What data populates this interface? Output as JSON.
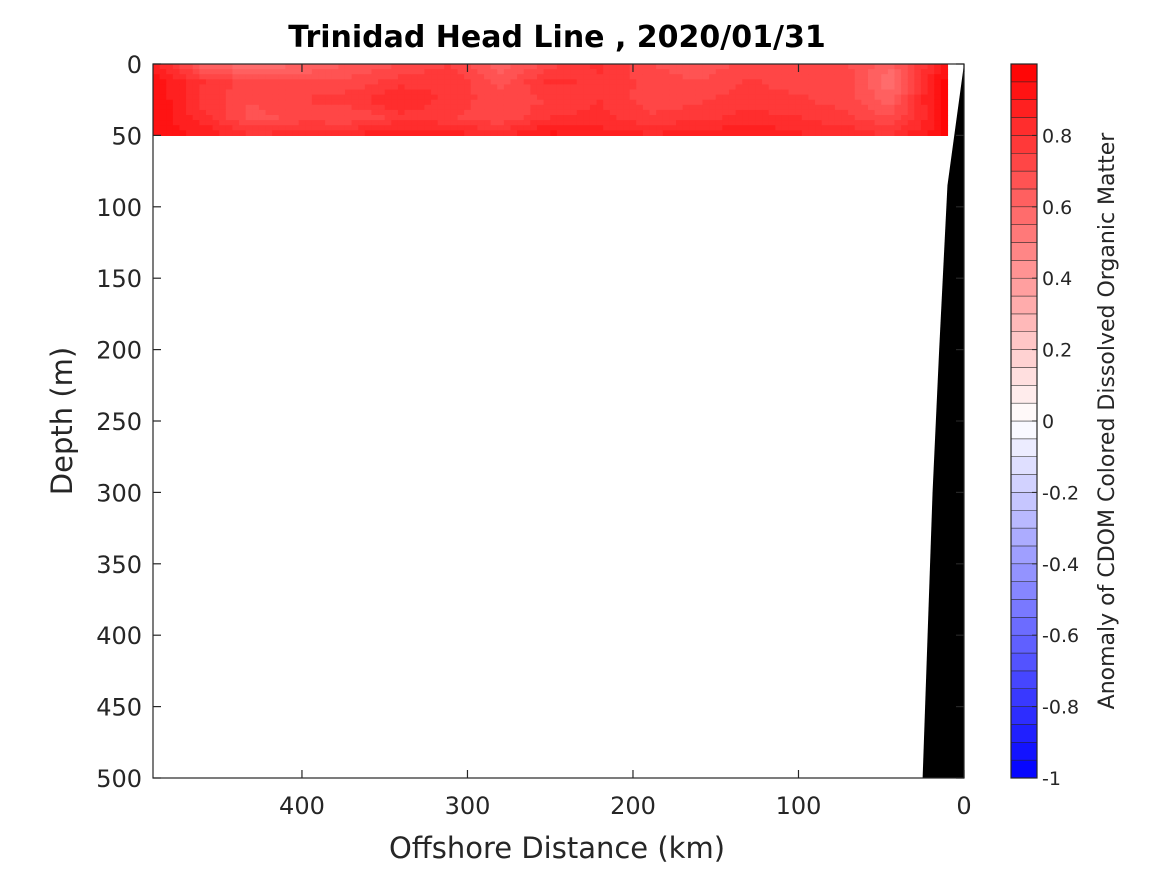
{
  "chart_data": {
    "type": "heatmap",
    "title": "Trinidad Head Line , 2020/01/31",
    "xlabel": "Offshore Distance (km)",
    "ylabel": "Depth (m)",
    "xlim": [
      490,
      0
    ],
    "ylim": [
      0,
      500
    ],
    "x_ticks": [
      {
        "value": 400,
        "label": "400"
      },
      {
        "value": 300,
        "label": "300"
      },
      {
        "value": 200,
        "label": "200"
      },
      {
        "value": 100,
        "label": "100"
      },
      {
        "value": 0,
        "label": "0"
      }
    ],
    "y_ticks": [
      {
        "value": 0,
        "label": "0"
      },
      {
        "value": 50,
        "label": "50"
      },
      {
        "value": 100,
        "label": "100"
      },
      {
        "value": 150,
        "label": "150"
      },
      {
        "value": 200,
        "label": "200"
      },
      {
        "value": 250,
        "label": "250"
      },
      {
        "value": 300,
        "label": "300"
      },
      {
        "value": 350,
        "label": "350"
      },
      {
        "value": 400,
        "label": "400"
      },
      {
        "value": 450,
        "label": "450"
      },
      {
        "value": 500,
        "label": "500"
      }
    ],
    "data_coverage": {
      "x_min": 10,
      "x_max": 490,
      "depth_min": 0,
      "depth_max": 50
    },
    "field_columns": [
      {
        "x": 490,
        "values": [
          0.88,
          0.95,
          0.96,
          0.95,
          0.92
        ]
      },
      {
        "x": 460,
        "values": [
          0.62,
          0.8,
          0.78,
          0.82,
          0.9
        ]
      },
      {
        "x": 430,
        "values": [
          0.55,
          0.72,
          0.7,
          0.68,
          0.8
        ]
      },
      {
        "x": 400,
        "values": [
          0.6,
          0.7,
          0.75,
          0.72,
          0.84
        ]
      },
      {
        "x": 370,
        "values": [
          0.65,
          0.72,
          0.78,
          0.7,
          0.86
        ]
      },
      {
        "x": 340,
        "values": [
          0.7,
          0.78,
          0.85,
          0.78,
          0.9
        ]
      },
      {
        "x": 310,
        "values": [
          0.75,
          0.8,
          0.78,
          0.76,
          0.88
        ]
      },
      {
        "x": 280,
        "values": [
          0.62,
          0.68,
          0.72,
          0.7,
          0.84
        ]
      },
      {
        "x": 250,
        "values": [
          0.72,
          0.82,
          0.75,
          0.8,
          0.92
        ]
      },
      {
        "x": 220,
        "values": [
          0.82,
          0.78,
          0.8,
          0.82,
          0.88
        ]
      },
      {
        "x": 190,
        "values": [
          0.7,
          0.74,
          0.72,
          0.76,
          0.86
        ]
      },
      {
        "x": 160,
        "values": [
          0.66,
          0.7,
          0.74,
          0.78,
          0.88
        ]
      },
      {
        "x": 130,
        "values": [
          0.72,
          0.76,
          0.78,
          0.82,
          0.9
        ]
      },
      {
        "x": 100,
        "values": [
          0.74,
          0.72,
          0.76,
          0.8,
          0.86
        ]
      },
      {
        "x": 70,
        "values": [
          0.7,
          0.74,
          0.72,
          0.76,
          0.84
        ]
      },
      {
        "x": 45,
        "values": [
          0.62,
          0.55,
          0.62,
          0.7,
          0.8
        ]
      },
      {
        "x": 25,
        "values": [
          0.78,
          0.8,
          0.85,
          0.82,
          0.9
        ]
      },
      {
        "x": 10,
        "values": [
          0.95,
          0.98,
          0.98,
          0.97,
          0.96
        ]
      }
    ],
    "field_depths": [
      0,
      12.5,
      25,
      37.5,
      50
    ],
    "bathymetry": [
      {
        "x": 0,
        "depth": 0
      },
      {
        "x": 10,
        "depth": 85
      },
      {
        "x": 15,
        "depth": 200
      },
      {
        "x": 19,
        "depth": 300
      },
      {
        "x": 25,
        "depth": 500
      }
    ],
    "colorbar": {
      "label": "Anomaly of CDOM Colored Dissolved Organic Matter",
      "min": -1,
      "max": 1,
      "levels": 40,
      "low_color": "#0000ff",
      "mid_color": "#ffffff",
      "high_color": "#ff0000",
      "ticks": [
        {
          "value": 0.8,
          "label": "0.8"
        },
        {
          "value": 0.6,
          "label": "0.6"
        },
        {
          "value": 0.4,
          "label": "0.4"
        },
        {
          "value": 0.2,
          "label": "0.2"
        },
        {
          "value": 0,
          "label": "0"
        },
        {
          "value": -0.2,
          "label": "-0.2"
        },
        {
          "value": -0.4,
          "label": "-0.4"
        },
        {
          "value": -0.6,
          "label": "-0.6"
        },
        {
          "value": -0.8,
          "label": "-0.8"
        },
        {
          "value": -1,
          "label": "-1"
        }
      ]
    },
    "grid": false,
    "land_color": "#000000"
  }
}
